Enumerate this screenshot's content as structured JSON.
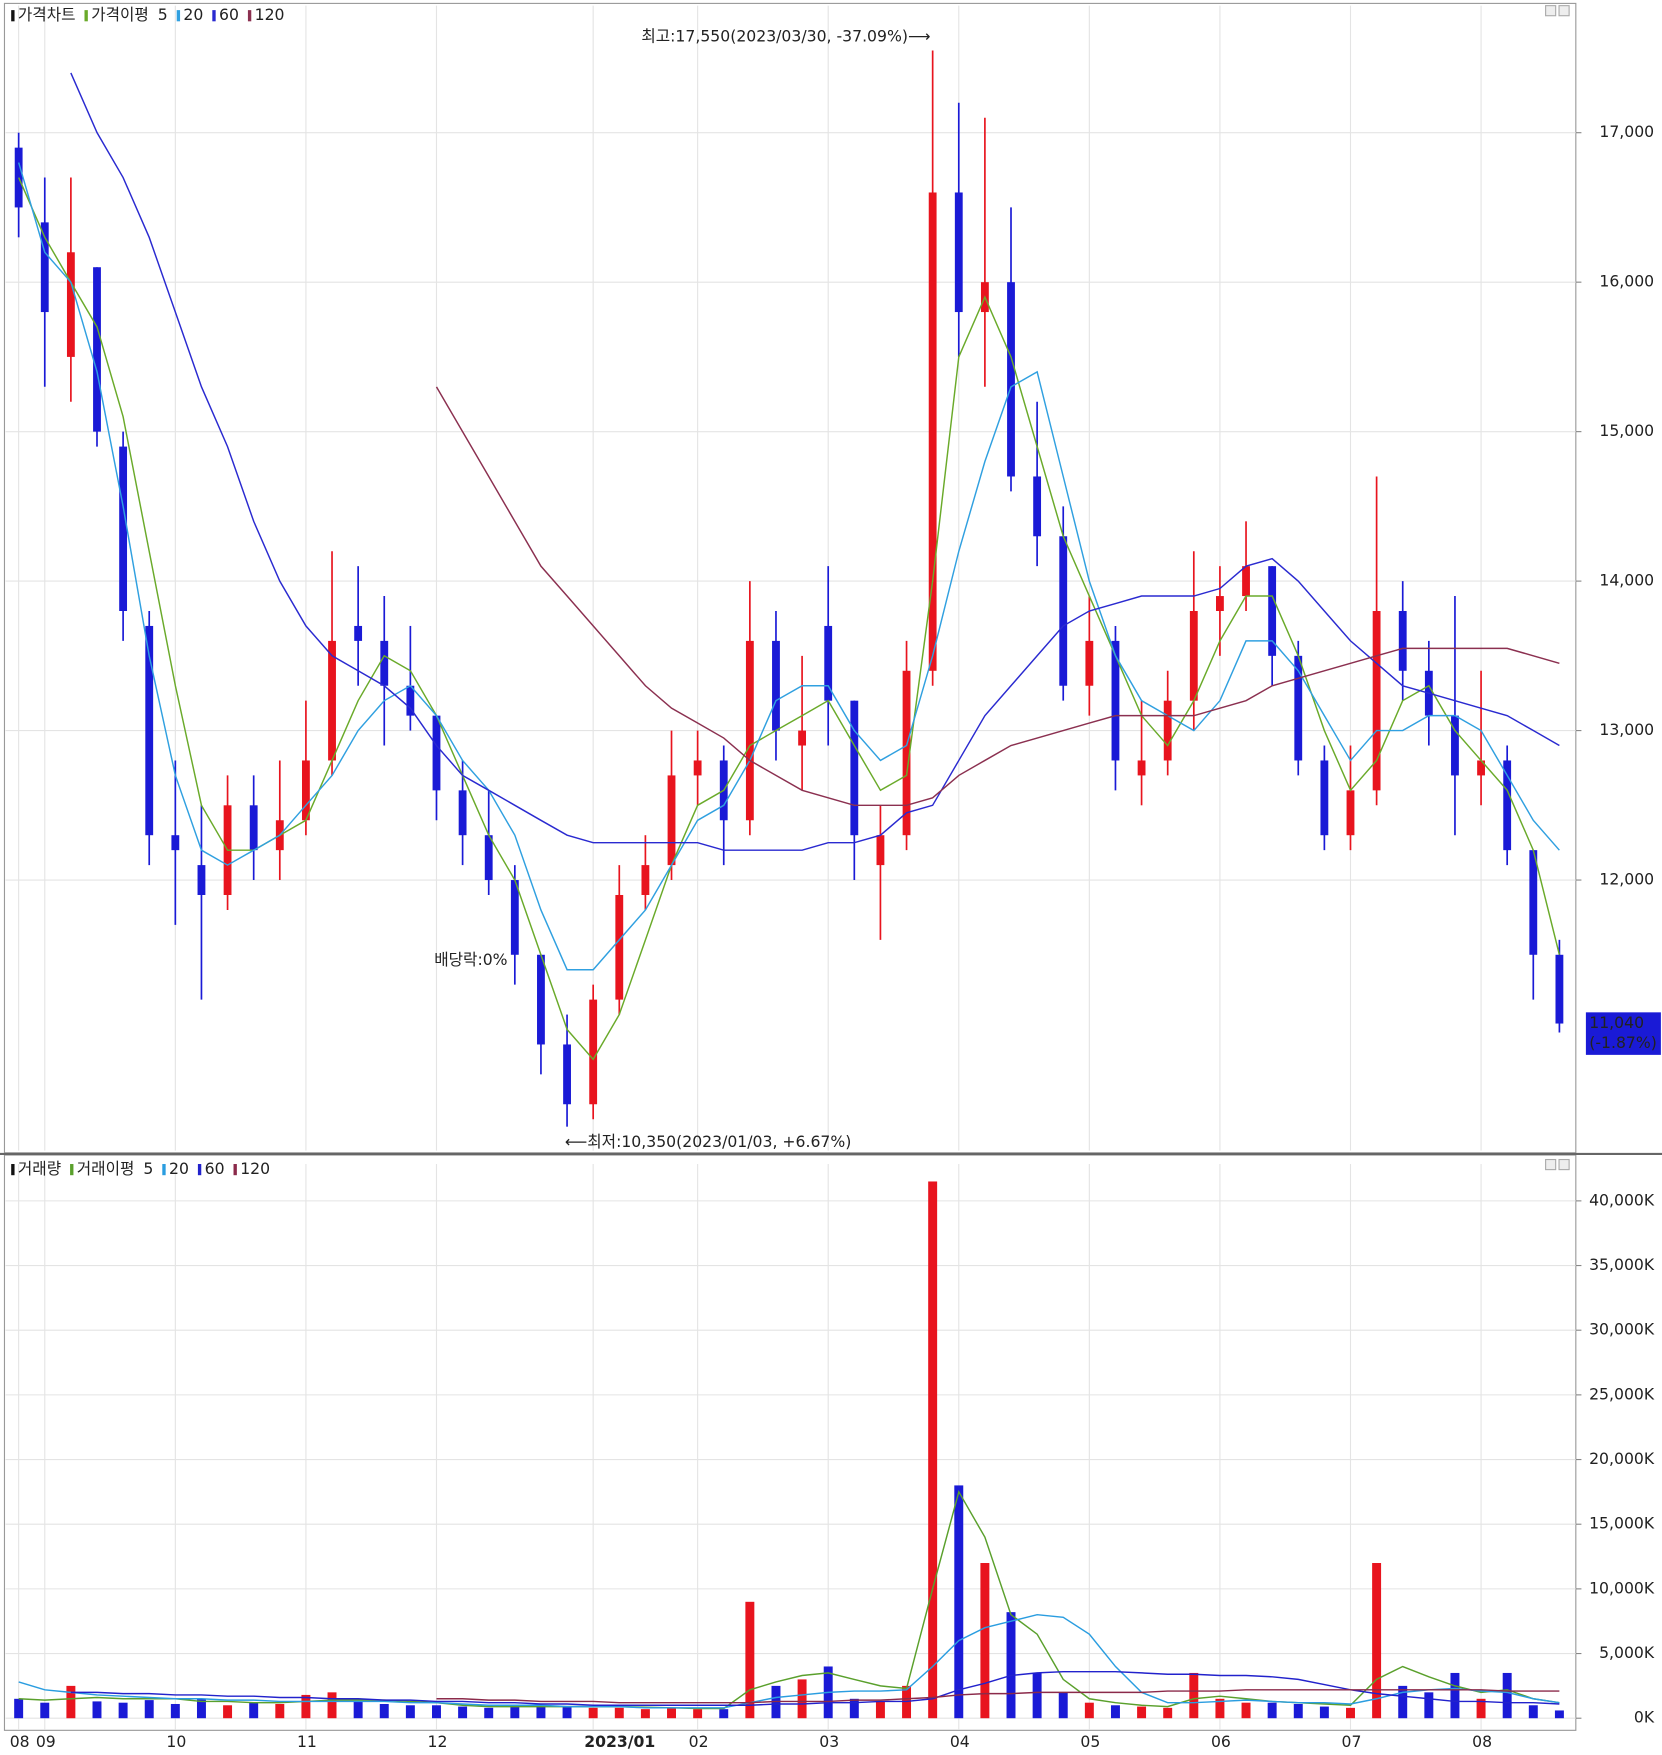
{
  "chart_data": [
    {
      "type": "candlestick",
      "title": "가격차트",
      "ma_title": "가격이평",
      "up_color": "#e8141e",
      "down_color": "#1a1ad6",
      "open": [
        16900,
        16400,
        15500,
        16100,
        14900,
        13700,
        12300,
        12100,
        11900,
        12500,
        12200,
        12400,
        12800,
        13700,
        13600,
        13300,
        13100,
        12600,
        12300,
        12000,
        11500,
        10900,
        10500,
        11200,
        11900,
        12100,
        12700,
        12800,
        12400,
        13600,
        12900,
        13700,
        13200,
        12100,
        12300,
        13400,
        16600,
        15800,
        16000,
        14700,
        14300,
        13300,
        13600,
        12700,
        12800,
        13200,
        13800,
        13900,
        14100,
        13500,
        12800,
        12300,
        12600,
        13800,
        13400,
        13100,
        12700,
        12800,
        12200,
        11500
      ],
      "high": [
        17000,
        16700,
        16700,
        16100,
        15000,
        13800,
        12800,
        12500,
        12700,
        12700,
        12800,
        13200,
        14200,
        14100,
        13900,
        13700,
        13100,
        12800,
        12600,
        12100,
        11500,
        11100,
        11300,
        12100,
        12300,
        13000,
        13000,
        12900,
        14000,
        13800,
        13500,
        14100,
        13200,
        12500,
        13600,
        17550,
        17200,
        17100,
        16500,
        15200,
        14500,
        13900,
        13700,
        13200,
        13400,
        14200,
        14100,
        14400,
        14100,
        13600,
        12900,
        12900,
        14700,
        14000,
        13600,
        13900,
        13400,
        12900,
        12200,
        11600
      ],
      "low": [
        16300,
        15300,
        15200,
        14900,
        13600,
        12100,
        11700,
        11200,
        11800,
        12000,
        12000,
        12300,
        12700,
        13300,
        12900,
        13000,
        12400,
        12100,
        11900,
        11300,
        10700,
        10350,
        10400,
        11100,
        11800,
        12000,
        12500,
        12100,
        12300,
        12800,
        12600,
        12900,
        12000,
        11600,
        12200,
        13300,
        15500,
        15300,
        14600,
        14100,
        13200,
        13100,
        12600,
        12500,
        12700,
        13000,
        13500,
        13800,
        13300,
        12700,
        12200,
        12200,
        12500,
        13200,
        12900,
        12300,
        12500,
        12100,
        11200,
        10980
      ],
      "close": [
        16500,
        15800,
        16200,
        15000,
        13800,
        12300,
        12200,
        11900,
        12500,
        12200,
        12400,
        12800,
        13600,
        13600,
        13300,
        13100,
        12600,
        12300,
        12000,
        11500,
        10900,
        10500,
        11200,
        11900,
        12100,
        12700,
        12800,
        12400,
        13600,
        13000,
        13000,
        13200,
        12300,
        12300,
        13400,
        16600,
        15800,
        16000,
        14700,
        14300,
        13300,
        13600,
        12800,
        12800,
        13200,
        13800,
        13900,
        14100,
        13500,
        12800,
        12300,
        12600,
        13800,
        13400,
        13100,
        12700,
        12800,
        12200,
        11500,
        11040
      ],
      "series": [
        {
          "name": "5",
          "color": "#6aaa2a",
          "values": [
            16700,
            16300,
            16000,
            15700,
            15100,
            14200,
            13300,
            12500,
            12200,
            12200,
            12300,
            12400,
            12800,
            13200,
            13500,
            13400,
            13100,
            12700,
            12300,
            12000,
            11500,
            11000,
            10800,
            11100,
            11600,
            12100,
            12500,
            12600,
            12900,
            13000,
            13100,
            13200,
            12900,
            12600,
            12700,
            14000,
            15500,
            15900,
            15500,
            14900,
            14300,
            13900,
            13500,
            13100,
            12900,
            13200,
            13600,
            13900,
            13900,
            13500,
            13000,
            12600,
            12800,
            13200,
            13300,
            13000,
            12800,
            12600,
            12200,
            11500
          ]
        },
        {
          "name": "20",
          "color": "#30a0e0",
          "values": [
            16800,
            16200,
            16000,
            15400,
            14500,
            13500,
            12700,
            12200,
            12100,
            12200,
            12300,
            12500,
            12700,
            13000,
            13200,
            13300,
            13100,
            12800,
            12600,
            12300,
            11800,
            11400,
            11400,
            11600,
            11800,
            12100,
            12400,
            12500,
            12800,
            13200,
            13300,
            13300,
            13000,
            12800,
            12900,
            13500,
            14200,
            14800,
            15300,
            15400,
            14700,
            14000,
            13500,
            13200,
            13100,
            13000,
            13200,
            13600,
            13600,
            13400,
            13100,
            12800,
            13000,
            13000,
            13100,
            13100,
            13000,
            12700,
            12400,
            12200
          ]
        },
        {
          "name": "60",
          "color": "#2a2ad0",
          "values": [
            null,
            null,
            17400,
            17000,
            16700,
            16300,
            15800,
            15300,
            14900,
            14400,
            14000,
            13700,
            13500,
            13400,
            13300,
            13150,
            12900,
            12700,
            12600,
            12500,
            12400,
            12300,
            12250,
            12250,
            12250,
            12250,
            12250,
            12200,
            12200,
            12200,
            12200,
            12250,
            12250,
            12300,
            12450,
            12500,
            12800,
            13100,
            13300,
            13500,
            13700,
            13800,
            13850,
            13900,
            13900,
            13900,
            13950,
            14100,
            14150,
            14000,
            13800,
            13600,
            13450,
            13300,
            13250,
            13200,
            13150,
            13100,
            13000,
            12900
          ]
        },
        {
          "name": "120",
          "color": "#8b3050",
          "values": [
            null,
            null,
            null,
            null,
            null,
            null,
            null,
            null,
            null,
            null,
            null,
            null,
            null,
            null,
            null,
            null,
            15300,
            15000,
            14700,
            14400,
            14100,
            13900,
            13700,
            13500,
            13300,
            13150,
            13050,
            12950,
            12800,
            12700,
            12600,
            12550,
            12500,
            12500,
            12500,
            12550,
            12700,
            12800,
            12900,
            12950,
            13000,
            13050,
            13100,
            13100,
            13100,
            13100,
            13150,
            13200,
            13300,
            13350,
            13400,
            13450,
            13500,
            13550,
            13550,
            13550,
            13550,
            13550,
            13500,
            13450
          ]
        }
      ],
      "ylim": [
        10190,
        17850
      ],
      "yticks": [
        {
          "value": 12000,
          "label": "12,000"
        },
        {
          "value": 13000,
          "label": "13,000"
        },
        {
          "value": 14000,
          "label": "14,000"
        },
        {
          "value": 15000,
          "label": "15,000"
        },
        {
          "value": 16000,
          "label": "16,000"
        },
        {
          "value": 17000,
          "label": "17,000"
        }
      ],
      "grid": true,
      "annotations": {
        "high": "최고:17,550(2023/03/30,  -37.09%)⟶",
        "low": "⟵최저:10,350(2023/01/03,  +6.67%)",
        "dividend": "배당락:0%"
      },
      "last_price": {
        "value": 11040,
        "label": "11,040",
        "change": "(-1.87%)"
      }
    },
    {
      "type": "bar",
      "title": "거래량",
      "ma_title": "거래이평",
      "categories": [
        "08",
        "09",
        null,
        null,
        null,
        null,
        "10",
        null,
        null,
        null,
        null,
        "11",
        null,
        null,
        null,
        null,
        "12",
        null,
        null,
        null,
        null,
        null,
        "2023/01",
        null,
        null,
        null,
        "02",
        null,
        null,
        null,
        null,
        "03",
        null,
        null,
        null,
        null,
        "04",
        null,
        null,
        null,
        null,
        "05",
        null,
        null,
        null,
        null,
        "06",
        null,
        null,
        null,
        null,
        "07",
        null,
        null,
        null,
        null,
        "08",
        null,
        null,
        null
      ],
      "values": [
        1500,
        1200,
        2500,
        1300,
        1200,
        1400,
        1100,
        1500,
        1000,
        1200,
        1100,
        1800,
        2000,
        1300,
        1100,
        1000,
        1000,
        900,
        800,
        900,
        1000,
        900,
        800,
        800,
        700,
        800,
        700,
        700,
        9000,
        2500,
        3000,
        4000,
        1500,
        1300,
        2500,
        41500,
        18000,
        12000,
        8200,
        3500,
        2000,
        1200,
        1000,
        900,
        800,
        3500,
        1500,
        1200,
        1200,
        1100,
        900,
        800,
        12000,
        2500,
        2000,
        3500,
        1500,
        3500,
        1000,
        600
      ],
      "series": [
        {
          "name": "5",
          "color": "#5aa02c",
          "values": [
            1500,
            1400,
            1500,
            1600,
            1500,
            1500,
            1500,
            1300,
            1300,
            1200,
            1200,
            1300,
            1400,
            1400,
            1400,
            1300,
            1200,
            1000,
            900,
            900,
            900,
            900,
            900,
            900,
            850,
            800,
            750,
            750,
            2200,
            2800,
            3300,
            3500,
            3000,
            2500,
            2300,
            10000,
            17500,
            14000,
            8000,
            6500,
            3000,
            1500,
            1200,
            1000,
            900,
            1500,
            1700,
            1500,
            1300,
            1200,
            1100,
            1000,
            3000,
            4000,
            3200,
            2500,
            2000,
            2200,
            1500,
            1200
          ]
        },
        {
          "name": "20",
          "color": "#2a9de0",
          "values": [
            2800,
            2200,
            2000,
            1800,
            1700,
            1600,
            1500,
            1500,
            1400,
            1400,
            1300,
            1300,
            1300,
            1300,
            1300,
            1200,
            1200,
            1100,
            1000,
            1000,
            1000,
            900,
            900,
            900,
            800,
            800,
            800,
            800,
            1200,
            1600,
            1800,
            2000,
            2100,
            2100,
            2200,
            4000,
            6000,
            7000,
            7500,
            8000,
            7800,
            6500,
            4000,
            2000,
            1200,
            1200,
            1300,
            1400,
            1300,
            1200,
            1200,
            1100,
            1500,
            2000,
            2200,
            2300,
            2100,
            2000,
            1500,
            1200
          ]
        },
        {
          "name": "60",
          "color": "#2222cc",
          "values": [
            null,
            null,
            2000,
            2000,
            1900,
            1900,
            1800,
            1800,
            1700,
            1700,
            1600,
            1600,
            1500,
            1500,
            1400,
            1400,
            1300,
            1300,
            1200,
            1200,
            1100,
            1100,
            1000,
            1000,
            1000,
            1000,
            1000,
            1000,
            1000,
            1100,
            1100,
            1200,
            1200,
            1300,
            1300,
            1500,
            2200,
            2700,
            3300,
            3500,
            3600,
            3600,
            3600,
            3500,
            3400,
            3400,
            3300,
            3300,
            3200,
            3000,
            2600,
            2200,
            1900,
            1700,
            1500,
            1300,
            1300,
            1200,
            1200,
            1100
          ]
        },
        {
          "name": "120",
          "color": "#8b2a4a",
          "values": [
            null,
            null,
            null,
            null,
            null,
            null,
            null,
            null,
            null,
            null,
            null,
            null,
            null,
            null,
            null,
            null,
            1500,
            1500,
            1400,
            1400,
            1300,
            1300,
            1300,
            1200,
            1200,
            1200,
            1200,
            1200,
            1200,
            1300,
            1300,
            1300,
            1400,
            1400,
            1500,
            1600,
            1800,
            1900,
            1900,
            2000,
            2000,
            2000,
            2000,
            2000,
            2100,
            2100,
            2100,
            2200,
            2200,
            2200,
            2200,
            2200,
            2200,
            2200,
            2200,
            2200,
            2200,
            2100,
            2100,
            2100
          ]
        }
      ],
      "ylim": [
        -850,
        42850
      ],
      "yticks": [
        {
          "value": 0,
          "label": "0K"
        },
        {
          "value": 5000,
          "label": "5,000K"
        },
        {
          "value": 10000,
          "label": "10,000K"
        },
        {
          "value": 15000,
          "label": "15,000K"
        },
        {
          "value": 20000,
          "label": "20,000K"
        },
        {
          "value": 25000,
          "label": "25,000K"
        },
        {
          "value": 30000,
          "label": "30,000K"
        },
        {
          "value": 35000,
          "label": "35,000K"
        },
        {
          "value": 40000,
          "label": "40,000K"
        }
      ],
      "grid": true
    }
  ]
}
